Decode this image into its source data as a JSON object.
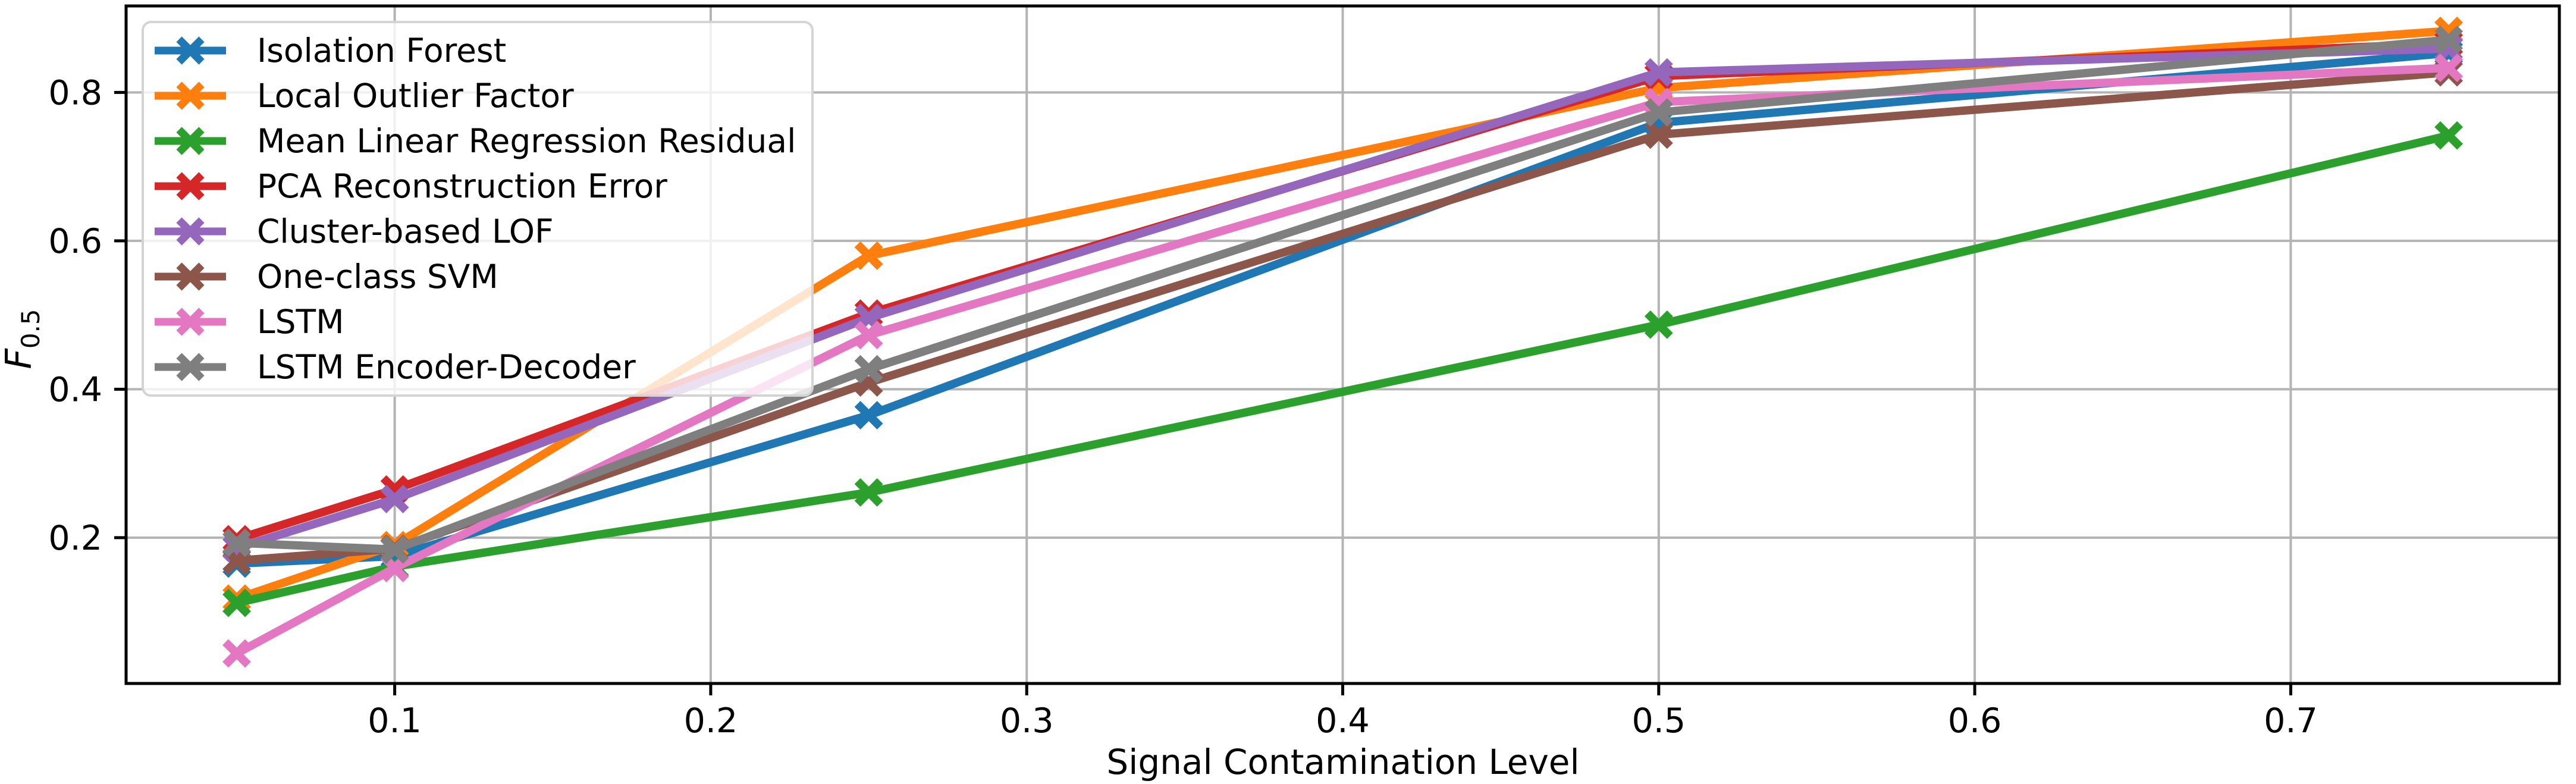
{
  "chart_data": {
    "type": "line",
    "title": "",
    "xlabel": "Signal Contamination Level",
    "ylabel": "F_0.5",
    "ylabel_main": "F",
    "ylabel_sub": "0.5",
    "x": [
      0.05,
      0.1,
      0.25,
      0.5,
      0.75
    ],
    "xlim": [
      0.015,
      0.785
    ],
    "ylim": [
      0.0035,
      0.9165
    ],
    "xticks": [
      0.1,
      0.2,
      0.3,
      0.4,
      0.5,
      0.6,
      0.7
    ],
    "xtick_labels": [
      "0.1",
      "0.2",
      "0.3",
      "0.4",
      "0.5",
      "0.6",
      "0.7"
    ],
    "yticks": [
      0.2,
      0.4,
      0.6,
      0.8
    ],
    "ytick_labels": [
      "0.2",
      "0.4",
      "0.6",
      "0.8"
    ],
    "grid": true,
    "grid_color": "#b4b4b4",
    "axis_color": "#000000",
    "legend_position": "upper left",
    "marker": "x",
    "series": [
      {
        "name": "Isolation Forest",
        "slug": "isolation-forest",
        "color": "#1f77b4",
        "values": [
          0.165,
          0.175,
          0.365,
          0.759,
          0.853
        ]
      },
      {
        "name": "Local Outlier Factor",
        "slug": "local-outlier-factor",
        "color": "#ff7f0e",
        "values": [
          0.118,
          0.19,
          0.58,
          0.806,
          0.883
        ]
      },
      {
        "name": "Mean Linear Regression Residual",
        "slug": "mean-linear-regression-residual",
        "color": "#2ca02c",
        "values": [
          0.112,
          0.161,
          0.261,
          0.487,
          0.742
        ]
      },
      {
        "name": "PCA Reconstruction Error",
        "slug": "pca-reconstruction-error",
        "color": "#d62728",
        "values": [
          0.198,
          0.265,
          0.502,
          0.822,
          0.866
        ]
      },
      {
        "name": "Cluster-based LOF",
        "slug": "cluster-based-lof",
        "color": "#9467bd",
        "values": [
          0.186,
          0.252,
          0.496,
          0.827,
          0.859
        ]
      },
      {
        "name": "One-class SVM",
        "slug": "one-class-svm",
        "color": "#8c564b",
        "values": [
          0.169,
          0.185,
          0.409,
          0.743,
          0.827
        ]
      },
      {
        "name": "LSTM",
        "slug": "lstm",
        "color": "#e377c2",
        "values": [
          0.044,
          0.159,
          0.473,
          0.787,
          0.833
        ]
      },
      {
        "name": "LSTM Encoder-Decoder",
        "slug": "lstm-encoder-decoder",
        "color": "#7f7f7f",
        "values": [
          0.193,
          0.184,
          0.427,
          0.773,
          0.871
        ]
      }
    ]
  }
}
